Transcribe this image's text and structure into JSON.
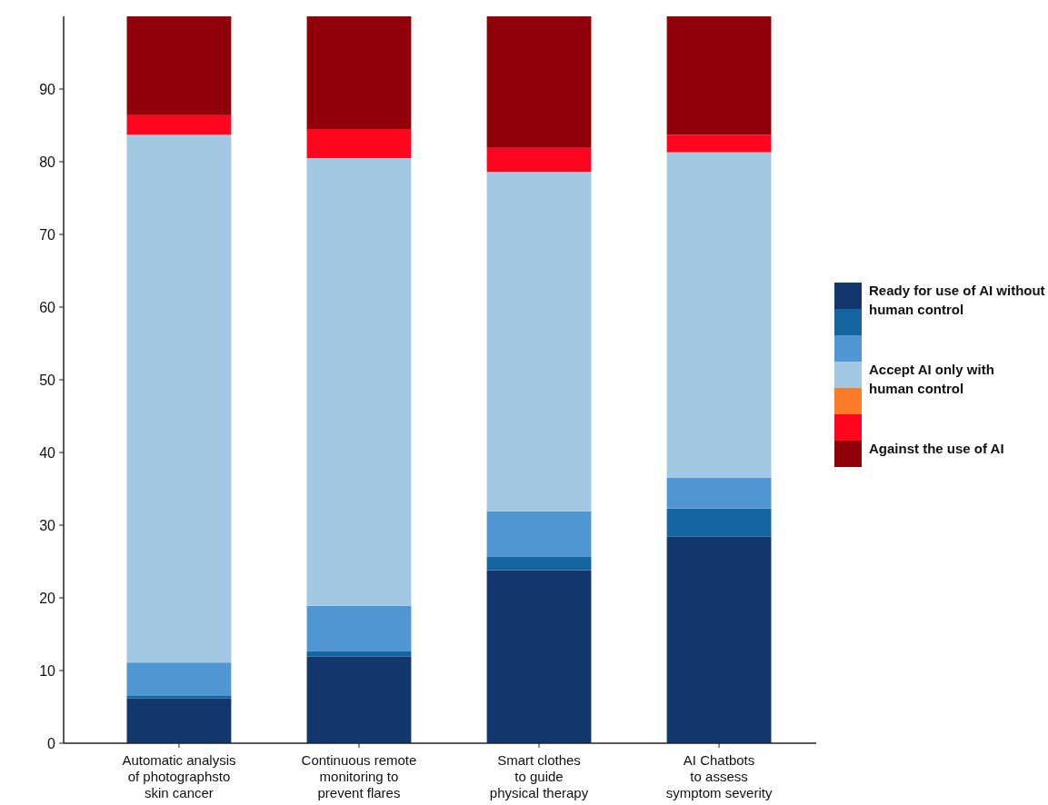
{
  "chart_data": {
    "type": "bar",
    "stacked": true,
    "categories": [
      "Automatic analysis\nof photographsto\nskin cancer",
      "Continuous remote\nmonitoring to\nprevent flares",
      "Smart clothes\nto guide\nphysical therapy",
      "AI Chatbots\nto assess\nsymptom severity"
    ],
    "series": [
      {
        "name": "Ready for use of AI without\nhuman control",
        "color": "#14366f",
        "values": [
          6.2,
          11.9,
          23.8,
          28.4
        ]
      },
      {
        "color": "#1565a0",
        "values": [
          0.3,
          0.8,
          1.9,
          3.9
        ]
      },
      {
        "color": "#4f96d2",
        "values": [
          4.6,
          6.2,
          6.2,
          4.2
        ]
      },
      {
        "name": "Accept AI only with\nhuman control",
        "color": "#a2c8e4",
        "values": [
          72.6,
          61.6,
          46.7,
          44.8
        ]
      },
      {
        "color": "#fd7c2a",
        "values": [
          0,
          0,
          0,
          0
        ]
      },
      {
        "color": "#fe061f",
        "values": [
          2.7,
          4.0,
          3.3,
          2.4
        ]
      },
      {
        "name": "Against the use of AI",
        "color": "#8f0009",
        "values": [
          13.6,
          15.5,
          18.1,
          16.3
        ]
      }
    ],
    "ylim": [
      0,
      100
    ],
    "yticks": [
      0,
      10,
      20,
      30,
      40,
      50,
      60,
      70,
      80,
      90
    ],
    "grid": false,
    "legend": "right"
  }
}
